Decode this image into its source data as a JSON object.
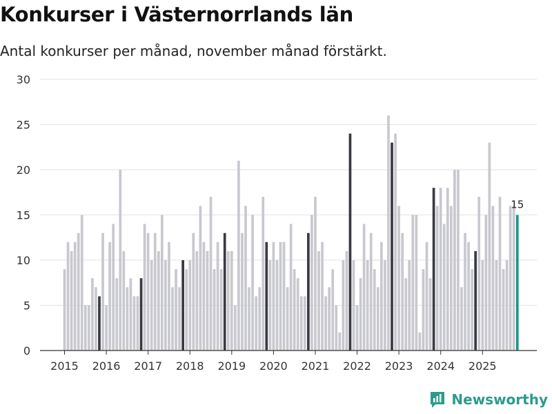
{
  "header": {
    "title": "Konkurser i Västernorrlands län",
    "subtitle": "Antal konkurser per månad, november månad förstärkt."
  },
  "brand": {
    "name": "Newsworthy"
  },
  "colors": {
    "bar": "#c8c8cf",
    "highlight": "#3a3a44",
    "latest": "#15958a",
    "grid": "#e2e2e2",
    "axis": "#333333"
  },
  "chart_data": {
    "type": "bar",
    "title": "Konkurser i Västernorrlands län",
    "subtitle": "Antal konkurser per månad, november månad förstärkt.",
    "xlabel": "",
    "ylabel": "",
    "ylim": [
      0,
      30
    ],
    "yticks": [
      0,
      5,
      10,
      15,
      20,
      25,
      30
    ],
    "start": "2015-01",
    "xtick_labels": [
      "2015",
      "2016",
      "2017",
      "2018",
      "2019",
      "2020",
      "2021",
      "2022",
      "2023",
      "2024",
      "2025"
    ],
    "highlight_month": "november",
    "grid": true,
    "values": [
      9,
      12,
      11,
      12,
      13,
      15,
      5,
      5,
      8,
      7,
      6,
      13,
      5,
      12,
      14,
      8,
      20,
      11,
      7,
      8,
      6,
      6,
      8,
      14,
      13,
      10,
      13,
      11,
      15,
      10,
      12,
      7,
      9,
      7,
      10,
      9,
      10,
      13,
      11,
      16,
      12,
      11,
      17,
      9,
      12,
      9,
      13,
      11,
      11,
      5,
      21,
      13,
      16,
      7,
      15,
      6,
      7,
      17,
      12,
      10,
      12,
      10,
      12,
      12,
      7,
      14,
      9,
      8,
      6,
      6,
      13,
      15,
      17,
      11,
      12,
      6,
      7,
      9,
      5,
      2,
      10,
      11,
      24,
      10,
      5,
      8,
      14,
      10,
      13,
      9,
      7,
      12,
      10,
      26,
      23,
      24,
      16,
      13,
      8,
      10,
      15,
      15,
      2,
      9,
      12,
      8,
      18,
      16,
      18,
      14,
      18,
      16,
      20,
      20,
      7,
      13,
      12,
      9,
      11,
      17,
      10,
      15,
      23,
      16,
      10,
      17,
      9,
      10,
      16,
      16,
      15
    ],
    "latest_label": "15"
  }
}
